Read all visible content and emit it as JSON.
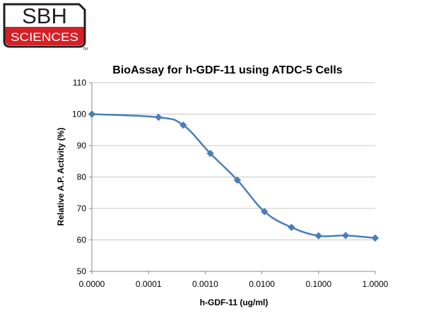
{
  "logo": {
    "top_text": "SBH",
    "bottom_text": "SCIENCES",
    "tm": "TM",
    "brand_red": "#d42027",
    "brand_dark": "#231f20"
  },
  "chart_data": {
    "type": "line",
    "title": "BioAssay for h-GDF-11 using ATDC-5 Cells",
    "xlabel": "h-GDF-11 (ug/ml)",
    "ylabel": "Relative A.P. Activity (%)",
    "x_scale": "log",
    "x_ticks": [
      "0.0000",
      "0.0001",
      "0.0010",
      "0.0100",
      "0.1000",
      "1.0000"
    ],
    "y_ticks": [
      50,
      60,
      70,
      80,
      90,
      100,
      110
    ],
    "ylim": [
      50,
      110
    ],
    "grid": "horizontal",
    "legend": "none",
    "series": [
      {
        "color": "#4a7ebb",
        "marker": "diamond",
        "x": [
          1e-05,
          0.00015,
          0.00041,
          0.00123,
          0.0037,
          0.0111,
          0.0333,
          0.1,
          0.3,
          1.0
        ],
        "values": [
          100,
          99,
          96.5,
          87.5,
          79,
          69,
          64,
          61.3,
          61.4,
          60.6
        ]
      }
    ]
  }
}
